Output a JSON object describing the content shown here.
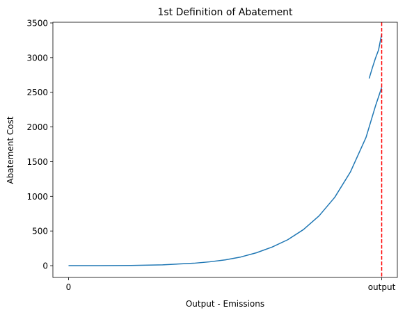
{
  "chart_data": {
    "type": "line",
    "title": "1st Definition of Abatement",
    "xlabel": "Output - Emissions",
    "ylabel": "Abatement Cost",
    "xlim": [
      -0.05,
      1.05
    ],
    "ylim": [
      -170,
      3510
    ],
    "x_ticks": [
      {
        "value": 0,
        "label": "0"
      },
      {
        "value": 1,
        "label": "output"
      }
    ],
    "y_ticks": [
      0,
      500,
      1000,
      1500,
      2000,
      2500,
      3000,
      3500
    ],
    "grid": false,
    "series": [
      {
        "color": "#1f77b4",
        "x": [
          0,
          0.1,
          0.2,
          0.3,
          0.4,
          0.45,
          0.5,
          0.55,
          0.6,
          0.65,
          0.7,
          0.75,
          0.8,
          0.85,
          0.9,
          0.95,
          0.98,
          1.0
        ],
        "y": [
          0,
          0.3,
          3,
          12,
          35,
          55,
          83,
          125,
          186,
          268,
          374,
          520,
          718,
          985,
          1350,
          1850,
          2300,
          2570
        ]
      },
      {
        "color": "#1f77b4",
        "x": [
          0.96,
          0.97,
          0.98,
          0.99,
          1.0
        ],
        "y": [
          2700,
          2850,
          2990,
          3110,
          3340
        ]
      }
    ],
    "vline": {
      "x": 1,
      "color": "#ff0000",
      "style": "dashed"
    }
  }
}
